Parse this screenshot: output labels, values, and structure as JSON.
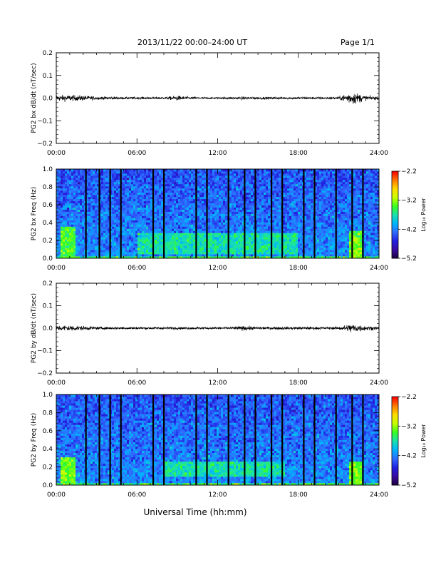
{
  "header": {
    "title": "2013/11/22  00:00–24:00 UT",
    "page": "Page 1/1"
  },
  "footer": {
    "xlabel": "Universal Time (hh:mm)"
  },
  "colormap": {
    "stops": [
      "#1a003a",
      "#3a0aa0",
      "#2020e0",
      "#2f6bff",
      "#00b4ff",
      "#18e0b0",
      "#38ff20",
      "#c8ff00",
      "#ffdc00",
      "#ff7a00",
      "#ff0000"
    ]
  },
  "chart_data": [
    {
      "type": "line",
      "ylabel": "PG2 bx dB/dt (nT/sec)",
      "xlim": [
        0,
        24
      ],
      "ylim": [
        -0.2,
        0.2
      ],
      "x_tick_labels": [
        "00:00",
        "06:00",
        "12:00",
        "18:00",
        "24:00"
      ],
      "y_ticks": [
        -0.2,
        -0.1,
        0.0,
        0.1,
        0.2
      ],
      "y_tick_labels": [
        "−0.2",
        "−0.1",
        "0.0",
        "0.1",
        "0.2"
      ],
      "series": [
        {
          "values": "noise around 0.0 nT/sec; typical amplitude ~0.01, larger bursts near 00:00-02:30, 09:00, 14:00 and 22:00-22:45 (up to ~±0.03)",
          "x": [
            0,
            1,
            2,
            3,
            4,
            5,
            6,
            7,
            8,
            9,
            10,
            11,
            12,
            13,
            14,
            15,
            16,
            17,
            18,
            19,
            20,
            21,
            22,
            23,
            24
          ],
          "amplitude": [
            0.012,
            0.013,
            0.011,
            0.007,
            0.006,
            0.005,
            0.005,
            0.005,
            0.005,
            0.01,
            0.005,
            0.004,
            0.004,
            0.005,
            0.006,
            0.005,
            0.005,
            0.005,
            0.005,
            0.005,
            0.005,
            0.006,
            0.028,
            0.01,
            0.006
          ]
        }
      ]
    },
    {
      "type": "heatmap",
      "ylabel": "PG2 bx Freq (Hz)",
      "xlim": [
        0,
        24
      ],
      "ylim": [
        0.0,
        1.0
      ],
      "x_tick_labels": [
        "00:00",
        "06:00",
        "12:00",
        "18:00",
        "24:00"
      ],
      "y_ticks": [
        0.0,
        0.2,
        0.4,
        0.6,
        0.8,
        1.0
      ],
      "y_tick_labels": [
        "0.0",
        "0.2",
        "0.4",
        "0.6",
        "0.8",
        "1.0"
      ],
      "colorbar": {
        "label": "Log₁₀ Power",
        "range": [
          -5.2,
          -2.2
        ],
        "ticks": [
          -5.2,
          -4.2,
          -3.2,
          -2.2
        ],
        "tick_labels": [
          "−5.2",
          "−4.2",
          "−3.2",
          "−2.2"
        ]
      },
      "gap_lines_hours": [
        2.2,
        3.2,
        4.0,
        4.8,
        7.2,
        8.0,
        10.4,
        11.2,
        12.8,
        14.0,
        14.8,
        16.0,
        16.8,
        18.4,
        19.2,
        20.8,
        22.0,
        22.8
      ],
      "enhanced_bands": [
        {
          "t": [
            0.3,
            1.5
          ],
          "f": [
            0.0,
            0.35
          ],
          "level": -3.4
        },
        {
          "t": [
            6.0,
            18.0
          ],
          "f": [
            0.05,
            0.28
          ],
          "level": -3.7
        },
        {
          "t": [
            21.8,
            22.8
          ],
          "f": [
            0.0,
            0.3
          ],
          "level": -3.3
        }
      ],
      "background_level": -4.4
    },
    {
      "type": "line",
      "ylabel": "PG2 by dB/dt (nT/sec)",
      "xlim": [
        0,
        24
      ],
      "ylim": [
        -0.2,
        0.2
      ],
      "x_tick_labels": [
        "00:00",
        "06:00",
        "12:00",
        "18:00",
        "24:00"
      ],
      "y_ticks": [
        -0.2,
        -0.1,
        0.0,
        0.1,
        0.2
      ],
      "y_tick_labels": [
        "−0.2",
        "−0.1",
        "0.0",
        "0.1",
        "0.2"
      ],
      "series": [
        {
          "values": "noise around 0.0 nT/sec; bursts near 00:00-02:30, 14:00 and 22:00-22:45",
          "x": [
            0,
            1,
            2,
            3,
            4,
            5,
            6,
            7,
            8,
            9,
            10,
            11,
            12,
            13,
            14,
            15,
            16,
            17,
            18,
            19,
            20,
            21,
            22,
            23,
            24
          ],
          "amplitude": [
            0.011,
            0.013,
            0.009,
            0.006,
            0.005,
            0.005,
            0.005,
            0.005,
            0.005,
            0.005,
            0.005,
            0.005,
            0.005,
            0.005,
            0.01,
            0.005,
            0.006,
            0.006,
            0.006,
            0.006,
            0.005,
            0.006,
            0.02,
            0.01,
            0.006
          ]
        }
      ]
    },
    {
      "type": "heatmap",
      "ylabel": "PG2 by Freq (Hz)",
      "xlim": [
        0,
        24
      ],
      "ylim": [
        0.0,
        1.0
      ],
      "x_tick_labels": [
        "00:00",
        "06:00",
        "12:00",
        "18:00",
        "24:00"
      ],
      "y_ticks": [
        0.0,
        0.2,
        0.4,
        0.6,
        0.8,
        1.0
      ],
      "y_tick_labels": [
        "0.0",
        "0.2",
        "0.4",
        "0.6",
        "0.8",
        "1.0"
      ],
      "colorbar": {
        "label": "Log₁₀ Power",
        "range": [
          -5.2,
          -2.2
        ],
        "ticks": [
          -5.2,
          -4.2,
          -3.2,
          -2.2
        ],
        "tick_labels": [
          "−5.2",
          "−4.2",
          "−3.2",
          "−2.2"
        ]
      },
      "gap_lines_hours": [
        2.2,
        3.2,
        4.0,
        4.8,
        7.2,
        8.0,
        10.4,
        11.2,
        12.8,
        14.0,
        14.8,
        16.0,
        16.8,
        18.4,
        19.2,
        20.8,
        22.0,
        22.8
      ],
      "enhanced_bands": [
        {
          "t": [
            0.3,
            1.5
          ],
          "f": [
            0.0,
            0.3
          ],
          "level": -3.3
        },
        {
          "t": [
            8.0,
            17.0
          ],
          "f": [
            0.1,
            0.25
          ],
          "level": -3.7
        },
        {
          "t": [
            21.8,
            22.8
          ],
          "f": [
            0.0,
            0.25
          ],
          "level": -3.3
        }
      ],
      "background_level": -4.4
    }
  ]
}
